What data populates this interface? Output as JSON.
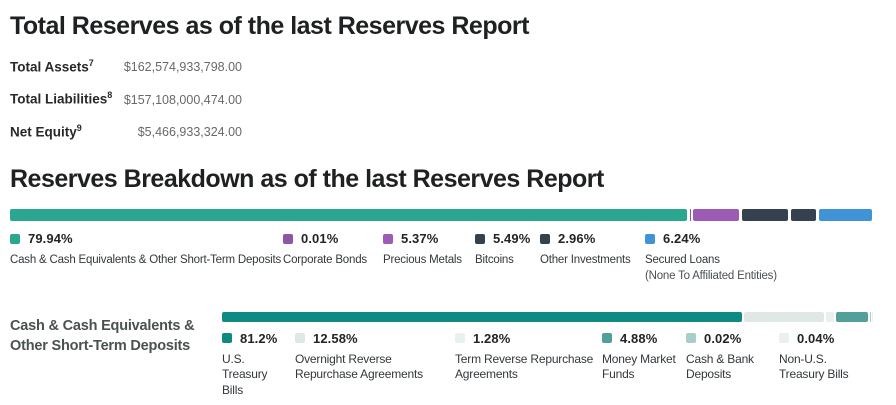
{
  "total_reserves": {
    "heading": "Total Reserves as of the last Reserves Report",
    "rows": [
      {
        "label": "Total Assets",
        "sup": "7",
        "value": "$162,574,933,798.00"
      },
      {
        "label": "Total Liabilities",
        "sup": "8",
        "value": "$157,108,000,474.00"
      },
      {
        "label": "Net Equity",
        "sup": "9",
        "value": "$5,466,933,324.00"
      }
    ]
  },
  "reserves_breakdown": {
    "heading": "Reserves Breakdown as of the last Reserves Report",
    "segments": [
      {
        "label": "Cash & Cash Equivalents & Other Short-Term Deposits",
        "pct": "79.94%",
        "value": 79.94,
        "color": "#2ba78f"
      },
      {
        "label": "Corporate Bonds",
        "pct": "0.01%",
        "value": 0.01,
        "color": "#8d55a8"
      },
      {
        "label": "Precious Metals",
        "pct": "5.37%",
        "value": 5.37,
        "color": "#9d5bb5"
      },
      {
        "label": "Bitcoins",
        "pct": "5.49%",
        "value": 5.49,
        "color": "#364150"
      },
      {
        "label": "Other Investments",
        "pct": "2.96%",
        "value": 2.96,
        "color": "#364150"
      },
      {
        "label": "Secured Loans",
        "sublabel": "(None To Affiliated Entities)",
        "pct": "6.24%",
        "value": 6.24,
        "color": "#3f93d6"
      }
    ]
  },
  "cash_breakdown": {
    "title_line1": "Cash & Cash Equivalents &",
    "title_line2": "Other Short-Term Deposits",
    "segments": [
      {
        "label": "U.S. Treasury Bills",
        "pct": "81.2%",
        "value": 81.2,
        "color": "#0f8a82"
      },
      {
        "label": "Overnight Reverse Repurchase Agreements",
        "pct": "12.58%",
        "value": 12.58,
        "color": "#dfe8e4"
      },
      {
        "label": "Term Reverse Repurchase Agreements",
        "pct": "1.28%",
        "value": 1.28,
        "color": "#eaf0ed"
      },
      {
        "label": "Money Market Funds",
        "pct": "4.88%",
        "value": 4.88,
        "color": "#53a09a"
      },
      {
        "label": "Cash & Bank Deposits",
        "pct": "0.02%",
        "value": 0.02,
        "color": "#a7cfc8"
      },
      {
        "label": "Non-U.S. Treasury Bills",
        "pct": "0.04%",
        "value": 0.04,
        "color": "#eaf0ed"
      }
    ]
  },
  "chart_data": [
    {
      "type": "table",
      "title": "Total Reserves as of the last Reserves Report",
      "rows": [
        [
          "Total Assets",
          "$162,574,933,798.00"
        ],
        [
          "Total Liabilities",
          "$157,108,000,474.00"
        ],
        [
          "Net Equity",
          "$5,466,933,324.00"
        ]
      ]
    },
    {
      "type": "bar",
      "subtype": "stacked-horizontal",
      "title": "Reserves Breakdown as of the last Reserves Report",
      "unit": "%",
      "xlim": [
        0,
        100
      ],
      "legend_position": "below",
      "categories": [
        "Cash & Cash Equivalents & Other Short-Term Deposits",
        "Corporate Bonds",
        "Precious Metals",
        "Bitcoins",
        "Other Investments",
        "Secured Loans (None To Affiliated Entities)"
      ],
      "values": [
        79.94,
        0.01,
        5.37,
        5.49,
        2.96,
        6.24
      ],
      "colors": [
        "#2ba78f",
        "#8d55a8",
        "#9d5bb5",
        "#364150",
        "#364150",
        "#3f93d6"
      ]
    },
    {
      "type": "bar",
      "subtype": "stacked-horizontal",
      "title": "Cash & Cash Equivalents & Other Short-Term Deposits",
      "unit": "%",
      "xlim": [
        0,
        100
      ],
      "legend_position": "below",
      "categories": [
        "U.S. Treasury Bills",
        "Overnight Reverse Repurchase Agreements",
        "Term Reverse Repurchase Agreements",
        "Money Market Funds",
        "Cash & Bank Deposits",
        "Non-U.S. Treasury Bills"
      ],
      "values": [
        81.2,
        12.58,
        1.28,
        4.88,
        0.02,
        0.04
      ],
      "colors": [
        "#0f8a82",
        "#dfe8e4",
        "#eaf0ed",
        "#53a09a",
        "#a7cfc8",
        "#eaf0ed"
      ]
    }
  ]
}
